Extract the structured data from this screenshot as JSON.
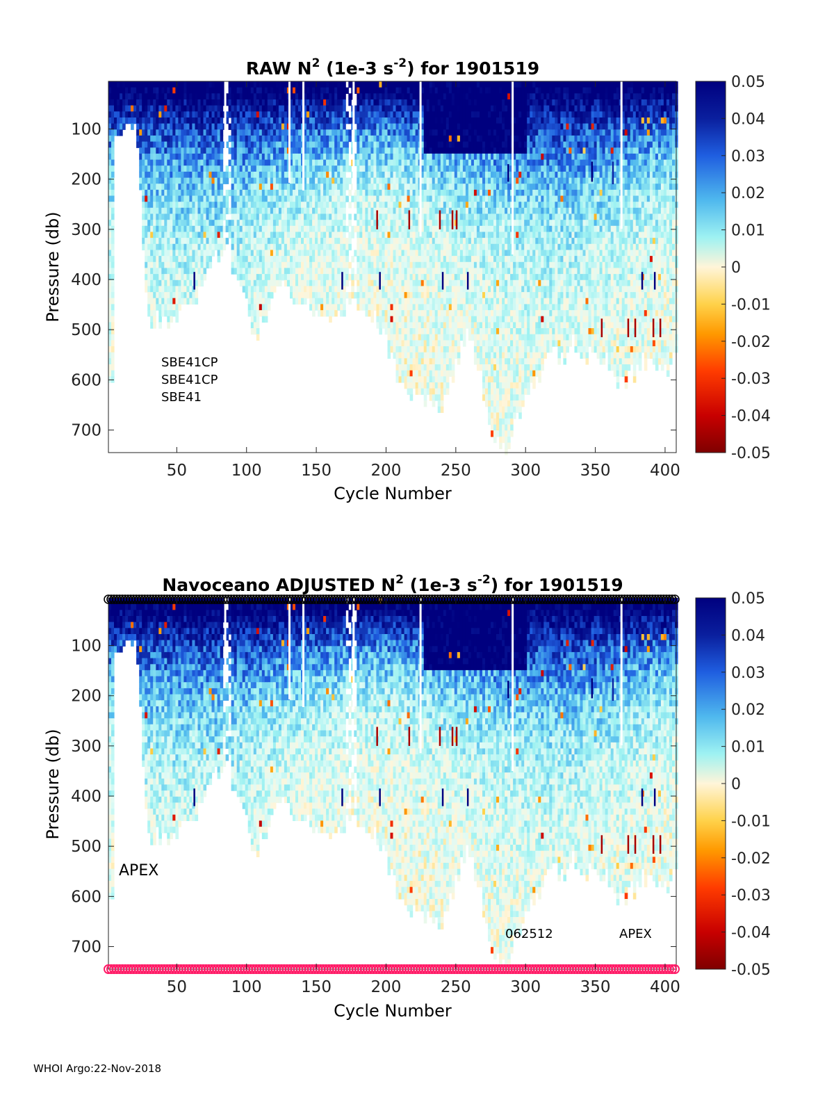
{
  "footer": "WHOI Argo:22-Nov-2018",
  "colormap": [
    "#7f0000",
    "#c80000",
    "#ff3c00",
    "#ff9900",
    "#ffd24a",
    "#fff5d9",
    "#e0fbf5",
    "#9ef2f2",
    "#4fb8ee",
    "#1f5ee0",
    "#0a1f9e",
    "#00007f"
  ],
  "chart_data": [
    {
      "type": "heatmap",
      "title_prefix": "RAW N",
      "title_suffix": " (1e-3 s",
      "title_exp": "-2",
      "title_end": ") for 1901519",
      "xlabel": "Cycle Number",
      "ylabel": "Pressure (db)",
      "xlim": [
        1,
        408
      ],
      "ylim": [
        5,
        745
      ],
      "y_reversed": true,
      "x_ticks": [
        "50",
        "100",
        "150",
        "200",
        "250",
        "300",
        "350",
        "400"
      ],
      "y_ticks": [
        "100",
        "200",
        "300",
        "400",
        "500",
        "600",
        "700"
      ],
      "colorbar": {
        "min": -0.05,
        "max": 0.05,
        "ticks": [
          "0.05",
          "0.04",
          "0.03",
          "0.02",
          "0.01",
          "0",
          "-0.01",
          "-0.02",
          "-0.03",
          "-0.04",
          "-0.05"
        ]
      },
      "annotations": [
        "SBE41CP",
        "SBE41CP",
        "SBE41"
      ],
      "depth_envelope": {
        "cycles": [
          1,
          5,
          8,
          12,
          20,
          28,
          34,
          40,
          48,
          55,
          62,
          68,
          75,
          80,
          86,
          92,
          98,
          104,
          112,
          118,
          125,
          132,
          138,
          146,
          152,
          158,
          165,
          172,
          178,
          184,
          192,
          198,
          204,
          210,
          218,
          225,
          232,
          238,
          244,
          252,
          258,
          266,
          272,
          278,
          284,
          290,
          296,
          304,
          312,
          318,
          326,
          334,
          342,
          350,
          358,
          366,
          374,
          382,
          390,
          398,
          404
        ],
        "max_pressure": [
          600,
          110,
          95,
          95,
          90,
          480,
          470,
          480,
          470,
          430,
          450,
          380,
          350,
          345,
          330,
          400,
          420,
          520,
          470,
          430,
          400,
          420,
          440,
          460,
          450,
          460,
          470,
          460,
          450,
          470,
          480,
          500,
          560,
          600,
          620,
          630,
          650,
          660,
          600,
          540,
          500,
          580,
          680,
          720,
          740,
          700,
          640,
          600,
          570,
          520,
          560,
          520,
          540,
          530,
          560,
          600,
          590,
          560,
          560,
          590,
          550
        ]
      },
      "deep_mean_pressure": [
        380,
        420,
        540,
        600,
        700
      ]
    },
    {
      "type": "heatmap",
      "title_prefix": "Navoceano  ADJUSTED N",
      "title_suffix": " (1e-3 s",
      "title_exp": "-2",
      "title_end": ") for 1901519",
      "xlabel": "Cycle Number",
      "ylabel": "Pressure (db)",
      "xlim": [
        1,
        408
      ],
      "ylim": [
        5,
        745
      ],
      "y_reversed": true,
      "x_ticks": [
        "50",
        "100",
        "150",
        "200",
        "250",
        "300",
        "350",
        "400"
      ],
      "y_ticks": [
        "100",
        "200",
        "300",
        "400",
        "500",
        "600",
        "700"
      ],
      "colorbar": {
        "min": -0.05,
        "max": 0.05,
        "ticks": [
          "0.05",
          "0.04",
          "0.03",
          "0.02",
          "0.01",
          "0",
          "-0.01",
          "-0.02",
          "-0.03",
          "-0.04",
          "-0.05"
        ]
      },
      "annotations": [
        "APEX",
        "062512",
        "APEX"
      ],
      "top_marker_color": "#000000",
      "bottom_marker_color": "#ff1a66"
    }
  ],
  "spike_cycles": [
    {
      "cycle": 62,
      "p_start": 385,
      "p_end": 420,
      "value": 0.05
    },
    {
      "cycle": 168,
      "p_start": 385,
      "p_end": 420,
      "value": 0.05
    },
    {
      "cycle": 195,
      "p_start": 385,
      "p_end": 420,
      "value": 0.05
    },
    {
      "cycle": 240,
      "p_start": 385,
      "p_end": 420,
      "value": 0.05
    },
    {
      "cycle": 258,
      "p_start": 385,
      "p_end": 420,
      "value": 0.05
    },
    {
      "cycle": 383,
      "p_start": 385,
      "p_end": 420,
      "value": 0.05
    },
    {
      "cycle": 392,
      "p_start": 385,
      "p_end": 420,
      "value": 0.05
    },
    {
      "cycle": 193,
      "p_start": 262,
      "p_end": 300,
      "value": -0.045
    },
    {
      "cycle": 216,
      "p_start": 262,
      "p_end": 300,
      "value": -0.045
    },
    {
      "cycle": 238,
      "p_start": 262,
      "p_end": 300,
      "value": -0.045
    },
    {
      "cycle": 247,
      "p_start": 262,
      "p_end": 300,
      "value": -0.045
    },
    {
      "cycle": 250,
      "p_start": 262,
      "p_end": 300,
      "value": -0.045
    },
    {
      "cycle": 354,
      "p_start": 478,
      "p_end": 515,
      "value": -0.045
    },
    {
      "cycle": 373,
      "p_start": 478,
      "p_end": 515,
      "value": -0.045
    },
    {
      "cycle": 378,
      "p_start": 478,
      "p_end": 515,
      "value": -0.045
    },
    {
      "cycle": 391,
      "p_start": 478,
      "p_end": 515,
      "value": -0.045
    },
    {
      "cycle": 396,
      "p_start": 478,
      "p_end": 515,
      "value": -0.045
    },
    {
      "cycle": 287,
      "p_start": 170,
      "p_end": 205,
      "value": 0.05
    },
    {
      "cycle": 347,
      "p_start": 165,
      "p_end": 205,
      "value": 0.05
    },
    {
      "cycle": 362,
      "p_start": 165,
      "p_end": 210,
      "value": 0.04
    }
  ]
}
